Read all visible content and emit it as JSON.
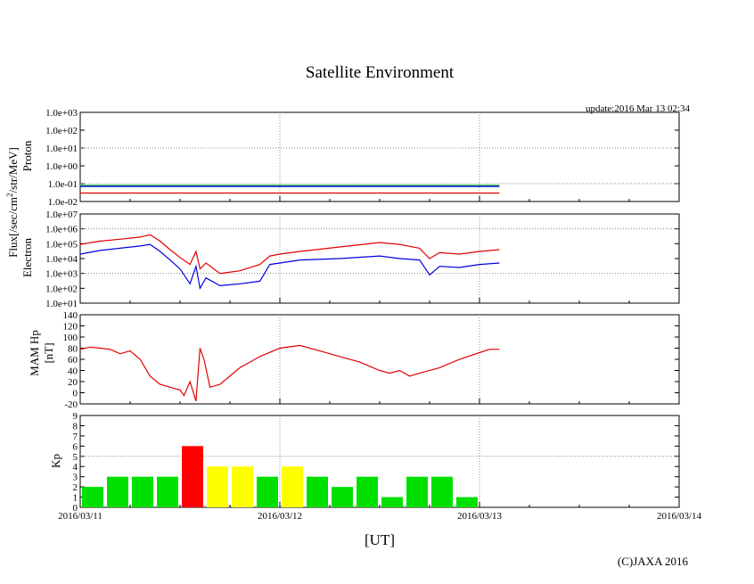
{
  "title": "Satellite Environment",
  "update": "update:2016 Mar 13 02:34",
  "xlabel": "[UT]",
  "copyright": "(C)JAXA 2016",
  "x_ticks": [
    "2016/03/11",
    "2016/03/12",
    "2016/03/13",
    "2016/03/14"
  ],
  "flux_label": "Flux[/sec/cm",
  "flux_label_sup": "2",
  "flux_label_rest": "/str/MeV]",
  "colors": {
    "red": "#e00000",
    "blue": "#0000e0",
    "green": "#20b040",
    "grid": "#888888"
  },
  "chart_data": [
    {
      "type": "line",
      "name": "Proton",
      "ylabel": "Proton",
      "yscale": "log",
      "ylim": [
        0.01,
        1000
      ],
      "y_ticks": [
        "1.0e-02",
        "1.0e-01",
        "1.0e+00",
        "1.0e+01",
        "1.0e+02",
        "1.0e+03"
      ],
      "x_unit": "days since 2016/03/11 00:00 UT",
      "xlim": [
        0,
        3
      ],
      "series": [
        {
          "name": "proton-green",
          "color": "#20b040",
          "x": [
            0,
            0.5,
            1.0,
            1.5,
            2.1
          ],
          "y": [
            0.08,
            0.08,
            0.08,
            0.08,
            0.08
          ]
        },
        {
          "name": "proton-blue",
          "color": "#0000e0",
          "x": [
            0,
            0.5,
            1.0,
            1.5,
            2.1
          ],
          "y": [
            0.07,
            0.07,
            0.07,
            0.07,
            0.07
          ]
        },
        {
          "name": "proton-red",
          "color": "#e00000",
          "x": [
            0,
            0.5,
            1.0,
            1.5,
            2.1
          ],
          "y": [
            0.03,
            0.03,
            0.03,
            0.03,
            0.03
          ]
        }
      ]
    },
    {
      "type": "line",
      "name": "Electron",
      "ylabel": "Electron",
      "yscale": "log",
      "ylim": [
        10,
        10000000
      ],
      "y_ticks": [
        "1.0e+01",
        "1.0e+02",
        "1.0e+03",
        "1.0e+04",
        "1.0e+05",
        "1.0e+06",
        "1.0e+07"
      ],
      "xlim": [
        0,
        3
      ],
      "series": [
        {
          "name": "electron-red",
          "color": "#e00000",
          "x": [
            0,
            0.1,
            0.2,
            0.3,
            0.35,
            0.4,
            0.45,
            0.5,
            0.55,
            0.58,
            0.6,
            0.63,
            0.7,
            0.8,
            0.9,
            0.95,
            1.0,
            1.1,
            1.3,
            1.5,
            1.6,
            1.7,
            1.75,
            1.8,
            1.9,
            2.0,
            2.1
          ],
          "y": [
            90000,
            150000,
            200000,
            280000,
            400000,
            150000,
            40000,
            12000,
            4000,
            30000,
            2000,
            5000,
            1000,
            1500,
            4000,
            15000,
            20000,
            30000,
            60000,
            120000,
            90000,
            50000,
            10000,
            25000,
            20000,
            30000,
            40000
          ]
        },
        {
          "name": "electron-blue",
          "color": "#0000e0",
          "x": [
            0,
            0.1,
            0.2,
            0.3,
            0.35,
            0.4,
            0.45,
            0.5,
            0.55,
            0.58,
            0.6,
            0.63,
            0.7,
            0.8,
            0.9,
            0.95,
            1.0,
            1.1,
            1.3,
            1.5,
            1.6,
            1.7,
            1.75,
            1.8,
            1.9,
            2.0,
            2.1
          ],
          "y": [
            20000,
            35000,
            50000,
            70000,
            90000,
            30000,
            8000,
            2000,
            200,
            3000,
            100,
            500,
            150,
            200,
            300,
            4000,
            5000,
            8000,
            10000,
            15000,
            10000,
            8000,
            800,
            3000,
            2500,
            4000,
            5000
          ]
        }
      ]
    },
    {
      "type": "line",
      "name": "MAM Hp",
      "ylabel": "MAM Hp",
      "ylabel2": "[nT]",
      "ylim": [
        -20,
        140
      ],
      "y_ticks": [
        "-20",
        "0",
        "20",
        "40",
        "60",
        "80",
        "100",
        "120",
        "140"
      ],
      "xlim": [
        0,
        3
      ],
      "series": [
        {
          "name": "hp-red",
          "color": "#e00000",
          "x": [
            0,
            0.05,
            0.1,
            0.15,
            0.2,
            0.25,
            0.3,
            0.35,
            0.4,
            0.45,
            0.5,
            0.52,
            0.55,
            0.58,
            0.6,
            0.62,
            0.65,
            0.7,
            0.8,
            0.9,
            1.0,
            1.1,
            1.2,
            1.3,
            1.4,
            1.5,
            1.55,
            1.6,
            1.65,
            1.7,
            1.8,
            1.9,
            2.0,
            2.05,
            2.1
          ],
          "y": [
            78,
            82,
            80,
            78,
            70,
            75,
            60,
            30,
            15,
            10,
            5,
            -5,
            20,
            -15,
            80,
            60,
            10,
            15,
            45,
            65,
            80,
            85,
            75,
            65,
            55,
            40,
            35,
            40,
            30,
            35,
            45,
            60,
            72,
            78,
            78
          ]
        }
      ]
    },
    {
      "type": "bar",
      "name": "Kp",
      "ylabel": "Kp",
      "ylim": [
        0,
        9
      ],
      "y_ticks": [
        "0",
        "1",
        "2",
        "3",
        "4",
        "5",
        "6",
        "7",
        "8",
        "9"
      ],
      "xlim": [
        0,
        3
      ],
      "bar_width_days": 0.125,
      "values": [
        2,
        3,
        3,
        3,
        6,
        4,
        4,
        3,
        4,
        3,
        2,
        3,
        1,
        3,
        3,
        1
      ],
      "thresholds": {
        "yellow_at": 4,
        "red_at": 5
      },
      "bar_colors": {
        "green": "#00e000",
        "yellow": "#ffff00",
        "red": "#ff0000"
      }
    }
  ]
}
